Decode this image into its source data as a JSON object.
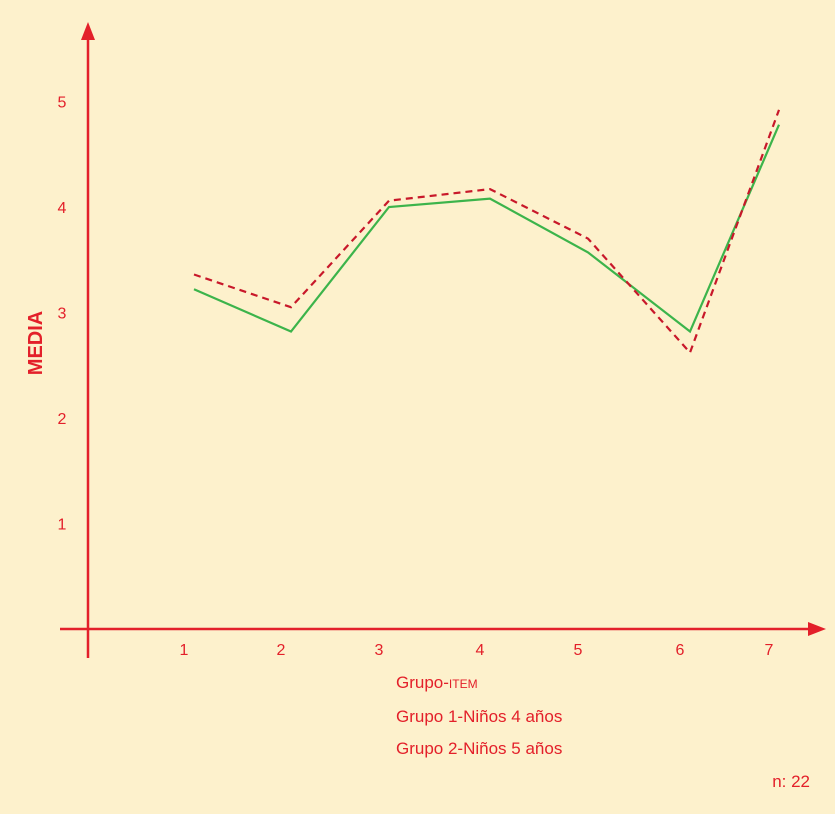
{
  "chart_data": {
    "type": "line",
    "title": "",
    "xlabel": "Grupo-ITEM",
    "ylabel": "MEDIA",
    "categories": [
      "1",
      "2",
      "3",
      "4",
      "5",
      "6",
      "7"
    ],
    "y_ticks": [
      "1",
      "2",
      "3",
      "4",
      "5"
    ],
    "ylim": [
      0,
      5.5
    ],
    "grid": false,
    "series": [
      {
        "name": "Grupo 1-Niños 4 años",
        "style": "solid",
        "color": "#3cb44b",
        "values": [
          3.22,
          2.82,
          4.0,
          4.08,
          3.57,
          2.82,
          4.78
        ]
      },
      {
        "name": "Grupo 2-Niños 5 años",
        "style": "dashed",
        "color": "#c8182a",
        "values": [
          3.36,
          3.05,
          4.06,
          4.17,
          3.7,
          2.62,
          4.92
        ]
      }
    ],
    "legend_position": "bottom-center",
    "note": "n: 22"
  },
  "colors": {
    "background": "#fdf1cc",
    "axis": "#e3202a",
    "text": "#e3202a"
  }
}
